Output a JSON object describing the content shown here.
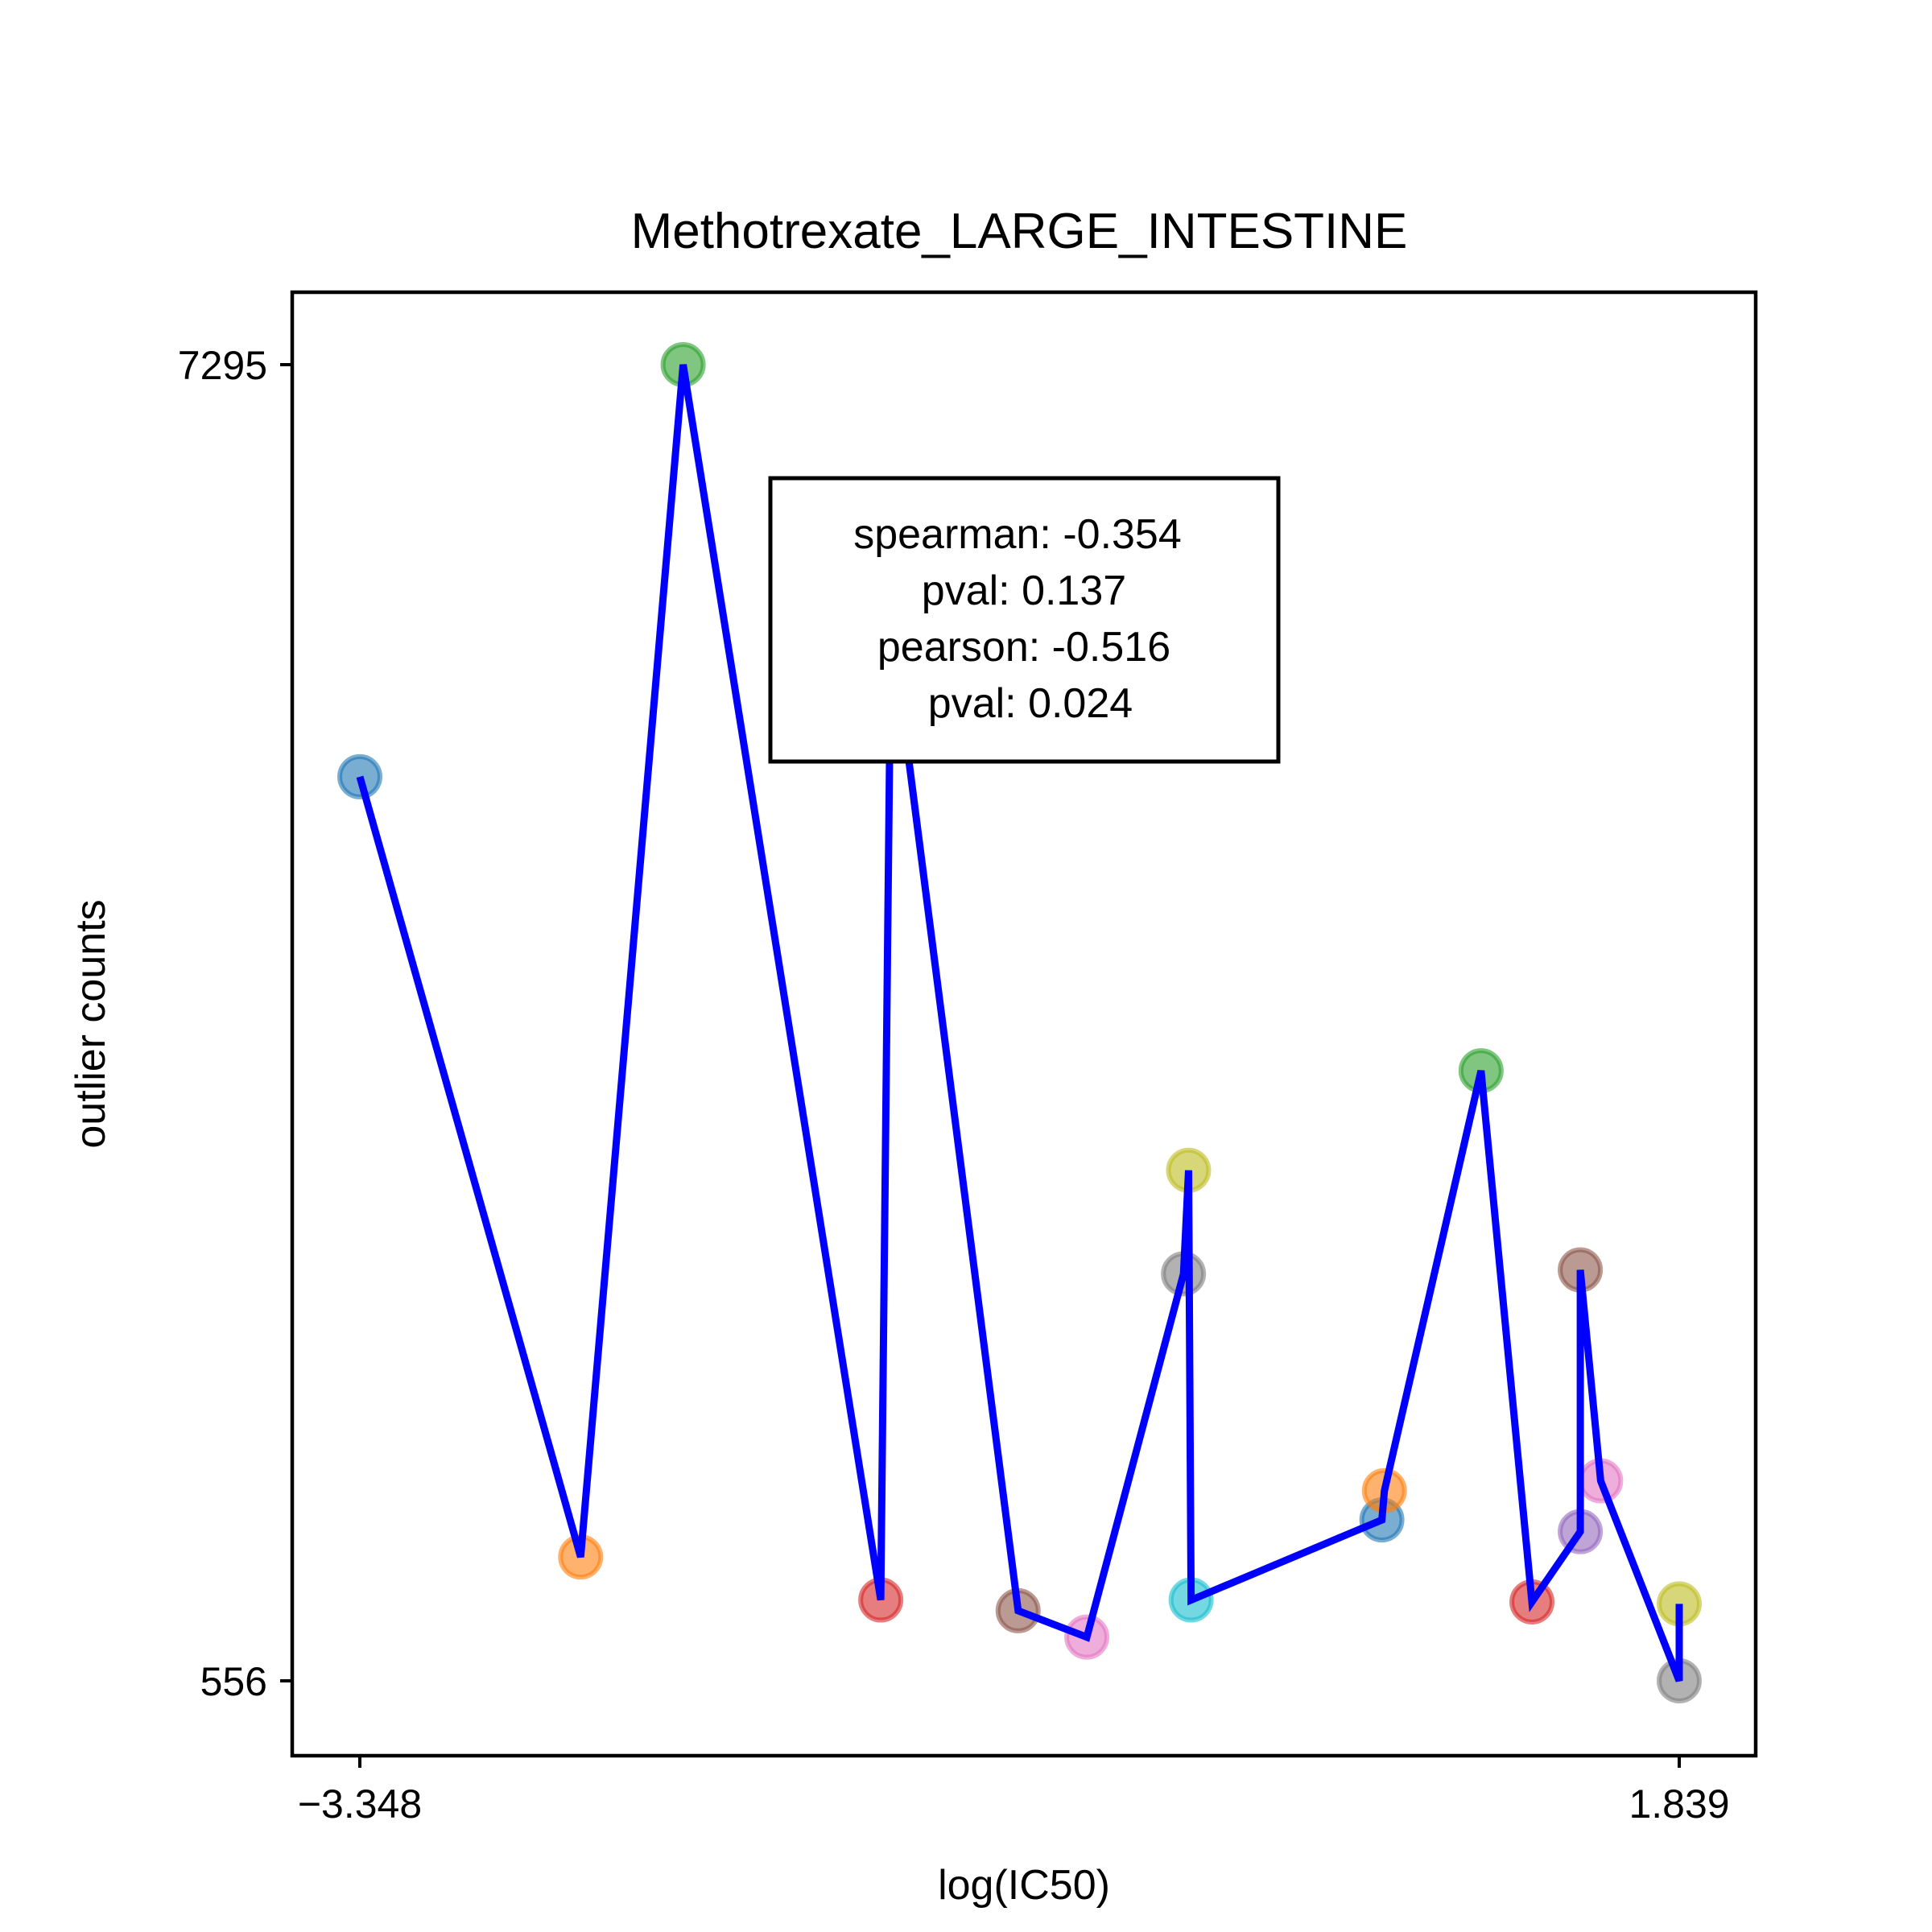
{
  "chart_data": {
    "type": "line",
    "title": "Methotrexate_LARGE_INTESTINE",
    "xlabel": "log(IC50)",
    "ylabel": "outlier counts",
    "xlim": [
      -3.348,
      1.839
    ],
    "ylim": [
      556,
      7295
    ],
    "x_ticks": [
      "−3.348",
      "1.839"
    ],
    "y_ticks": [
      "7295",
      "556"
    ],
    "grid": false,
    "line_color": "#0000ff",
    "points": [
      {
        "x": -3.348,
        "y": 5185,
        "color": "#1f77b4"
      },
      {
        "x": -2.48,
        "y": 1190,
        "color": "#ff7f0e"
      },
      {
        "x": -2.077,
        "y": 7295,
        "color": "#2ca02c"
      },
      {
        "x": -1.3,
        "y": 970,
        "color": "#d62728"
      },
      {
        "x": -1.26,
        "y": 5980,
        "color": "#9467bd"
      },
      {
        "x": -0.76,
        "y": 915,
        "color": "#8c564b"
      },
      {
        "x": -0.49,
        "y": 780,
        "color": "#e377c2"
      },
      {
        "x": -0.11,
        "y": 2640,
        "color": "#7f7f7f"
      },
      {
        "x": -0.09,
        "y": 3170,
        "color": "#bcbd22"
      },
      {
        "x": -0.08,
        "y": 970,
        "color": "#17becf"
      },
      {
        "x": 0.67,
        "y": 1380,
        "color": "#1f77b4"
      },
      {
        "x": 0.68,
        "y": 1530,
        "color": "#ff7f0e"
      },
      {
        "x": 1.06,
        "y": 3680,
        "color": "#2ca02c"
      },
      {
        "x": 1.26,
        "y": 960,
        "color": "#d62728"
      },
      {
        "x": 1.45,
        "y": 1320,
        "color": "#9467bd"
      },
      {
        "x": 1.45,
        "y": 2660,
        "color": "#8c564b"
      },
      {
        "x": 1.53,
        "y": 1580,
        "color": "#e377c2"
      },
      {
        "x": 1.839,
        "y": 556,
        "color": "#7f7f7f"
      },
      {
        "x": 1.839,
        "y": 950,
        "color": "#bcbd22"
      }
    ],
    "annotation": {
      "lines": [
        "spearman: -0.354",
        "pval: 0.137",
        "pearson: -0.516",
        "pval: 0.024"
      ]
    }
  }
}
